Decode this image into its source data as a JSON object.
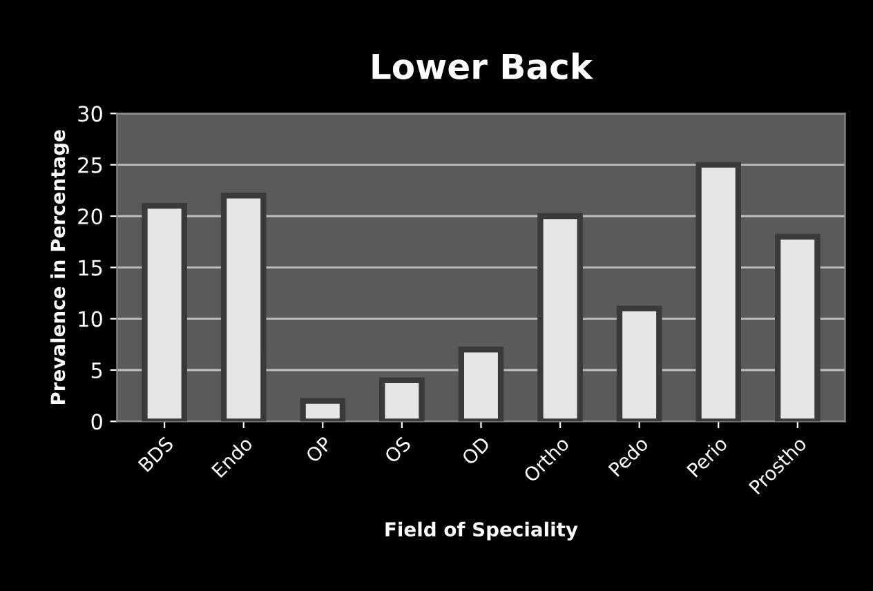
{
  "chart_data": {
    "type": "bar",
    "title": "Lower Back",
    "xlabel": "Field of Speciality",
    "ylabel": "Prevalence in Percentage",
    "categories": [
      "BDS",
      "Endo",
      "OP",
      "OS",
      "OD",
      "Ortho",
      "Pedo",
      "Perio",
      "Prostho"
    ],
    "values": [
      21,
      22,
      2,
      4,
      7,
      20,
      11,
      25,
      18
    ],
    "color": "#e6e6e6",
    "ylim": [
      0,
      30
    ],
    "yticks": [
      0,
      5,
      10,
      15,
      20,
      25,
      30
    ],
    "grid": "y"
  }
}
